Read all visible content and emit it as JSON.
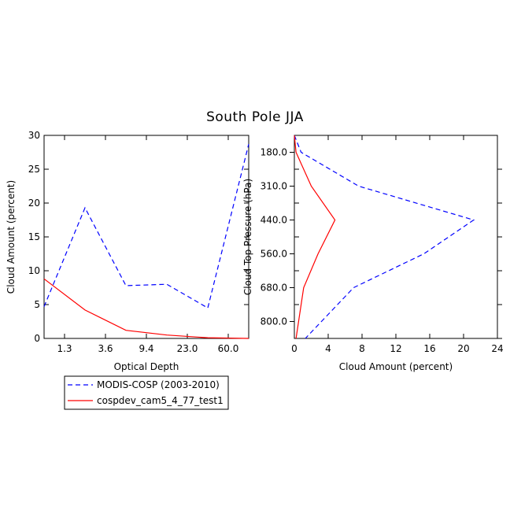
{
  "title": "South Pole JJA",
  "legend": {
    "entries": [
      {
        "label": "MODIS-COSP (2003-2010)",
        "color": "#0000ff",
        "dash": "dashed"
      },
      {
        "label": "cospdev_cam5_4_77_test1",
        "color": "#ff0000",
        "dash": "solid"
      }
    ]
  },
  "chart_data": [
    {
      "type": "line",
      "xlabel": "Optical Depth",
      "ylabel": "Cloud Amount (percent)",
      "x_tick_labels": [
        "1.3",
        "3.6",
        "9.4",
        "23.0",
        "60.0"
      ],
      "y_ticks": [
        0,
        5,
        10,
        15,
        20,
        25,
        30
      ],
      "ylim": [
        0,
        30
      ],
      "series": [
        {
          "name": "MODIS-COSP (2003-2010)",
          "color": "#0000ff",
          "dash": "dashed",
          "values": [
            4.7,
            19.3,
            7.8,
            8.0,
            4.5,
            28.7
          ]
        },
        {
          "name": "cospdev_cam5_4_77_test1",
          "color": "#ff0000",
          "dash": "solid",
          "values": [
            8.8,
            4.2,
            1.2,
            0.5,
            0.1,
            0.0
          ]
        }
      ]
    },
    {
      "type": "line",
      "xlabel": "Cloud Amount (percent)",
      "ylabel": "Cloud Top Pressure (hPa)",
      "x_ticks": [
        0,
        4,
        8,
        12,
        16,
        20,
        24
      ],
      "xlim": [
        0,
        24
      ],
      "y_tick_labels": [
        "180.0",
        "310.0",
        "440.0",
        "560.0",
        "680.0",
        "800.0"
      ],
      "series": [
        {
          "name": "MODIS-COSP (2003-2010)",
          "color": "#0000ff",
          "dash": "dashed",
          "values": [
            0.8,
            7.6,
            21.2,
            15.3,
            7.0,
            3.2
          ]
        },
        {
          "name": "cospdev_cam5_4_77_test1",
          "color": "#ff0000",
          "dash": "solid",
          "values": [
            0.2,
            2.0,
            4.8,
            2.8,
            1.1,
            0.5
          ]
        }
      ]
    }
  ]
}
